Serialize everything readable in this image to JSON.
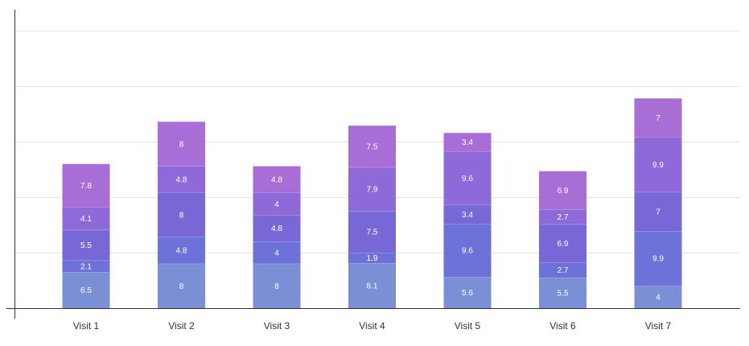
{
  "chart_data": {
    "type": "bar",
    "stacked": true,
    "categories": [
      "Visit 1",
      "Visit 2",
      "Visit 3",
      "Visit 4",
      "Visit 5",
      "Visit 6",
      "Visit 7"
    ],
    "series": [
      {
        "values": [
          6.5,
          8,
          8,
          8.1,
          5.6,
          5.5,
          4
        ],
        "color": "#7b8fd6"
      },
      {
        "values": [
          2.1,
          4.8,
          4,
          1.9,
          9.6,
          2.7,
          9.9
        ],
        "color": "#6c72d8"
      },
      {
        "values": [
          5.5,
          8,
          4.8,
          7.5,
          3.4,
          6.9,
          7
        ],
        "color": "#7868d6"
      },
      {
        "values": [
          4.1,
          4.8,
          4,
          7.9,
          9.6,
          2.7,
          9.9
        ],
        "color": "#8d6ad8"
      },
      {
        "values": [
          7.8,
          8,
          4.8,
          7.5,
          3.4,
          6.9,
          7
        ],
        "color": "#a86ed6"
      }
    ],
    "ylim": [
      0,
      50
    ],
    "y_gridlines": [
      10,
      20,
      30,
      40,
      50
    ],
    "y_tick_labels_shown": false,
    "grid": true,
    "legend": "none",
    "title": "",
    "xlabel": "",
    "ylabel": ""
  }
}
